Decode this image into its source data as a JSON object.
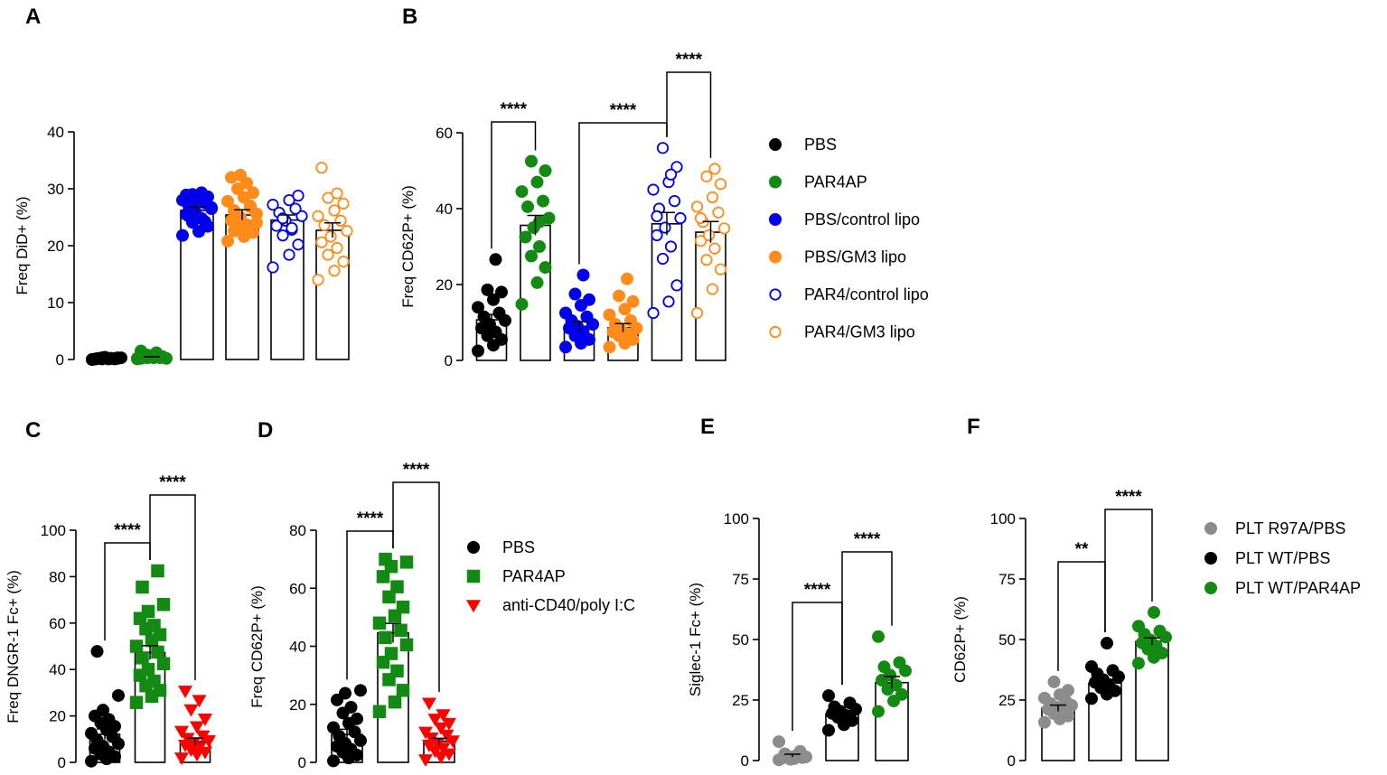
{
  "chart_data": [
    {
      "id": "A",
      "type": "bar",
      "panel_label": "A",
      "ylabel": "Freq DiD+ (%)",
      "ylim": [
        0,
        40
      ],
      "yticks": [
        0,
        10,
        20,
        30,
        40
      ],
      "ytick_labels": [
        "0",
        "10",
        "20",
        "30",
        "40"
      ],
      "groups": [
        {
          "name": "PBS",
          "color": "#000000",
          "filled": true,
          "marker": "circle",
          "mean": 0.2,
          "sem": 0.1,
          "points": [
            0,
            0.1,
            0.2,
            0.3,
            0.2,
            0.1,
            0.4,
            0.3,
            0.2,
            0.1,
            0,
            0.2,
            0.3,
            0.1,
            0.2,
            0.1
          ]
        },
        {
          "name": "PAR4AP",
          "color": "#138a13",
          "filled": true,
          "marker": "circle",
          "mean": 0.4,
          "sem": 0.1,
          "points": [
            0.1,
            0.3,
            0.5,
            0.8,
            1.2,
            1.5,
            0.4,
            0.2,
            0.6,
            0.3,
            0.2,
            0.7,
            0.4,
            0.3,
            0.5,
            0.2
          ]
        },
        {
          "name": "PBS/control lipo",
          "color": "#0000ee",
          "filled": true,
          "marker": "circle",
          "mean": 26.2,
          "sem": 0.6,
          "points": [
            21.8,
            22.5,
            23.4,
            24.1,
            24.8,
            25.5,
            26,
            26.5,
            27,
            27.5,
            28,
            28.3,
            28.6,
            29,
            29.3,
            28.9,
            27.8,
            26.7,
            25.2,
            24.2
          ]
        },
        {
          "name": "PBS/GM3 lipo",
          "color": "#ff8c1a",
          "filled": true,
          "marker": "circle",
          "mean": 25.4,
          "sem": 0.9,
          "points": [
            20.8,
            21.6,
            22.3,
            23,
            23.7,
            24.4,
            25,
            25.6,
            26.2,
            27,
            27.8,
            28.5,
            29.3,
            30,
            31,
            32,
            32.4,
            24,
            22.6,
            26.8
          ]
        },
        {
          "name": "PAR4/control lipo",
          "color": "#0000ee",
          "filled": false,
          "marker": "circle",
          "mean": 24.5,
          "sem": 0.9,
          "points": [
            16.2,
            18.4,
            20.2,
            21.8,
            22.8,
            23.5,
            24.4,
            25.2,
            25.8,
            26.5,
            27.2,
            28,
            28.8,
            24.8,
            23.1
          ]
        },
        {
          "name": "PAR4/GM3 lipo",
          "color": "#ff8c1a",
          "filled": false,
          "marker": "circle",
          "mean": 22.7,
          "sem": 1.3,
          "points": [
            14,
            15.6,
            17.2,
            18.4,
            19.6,
            20.6,
            21.6,
            22.6,
            23.6,
            24.4,
            25.2,
            26.2,
            27.4,
            28.4,
            29.2,
            33.7
          ]
        }
      ],
      "brackets": []
    },
    {
      "id": "B",
      "type": "bar",
      "panel_label": "B",
      "ylabel": "Freq CD62P+ (%)",
      "ylim": [
        0,
        60
      ],
      "yticks": [
        0,
        20,
        40,
        60
      ],
      "ytick_labels": [
        "0",
        "20",
        "40",
        "60"
      ],
      "groups": [
        {
          "name": "PBS",
          "color": "#000000",
          "filled": true,
          "marker": "circle",
          "mean": 10.7,
          "sem": 1.4,
          "points": [
            2.5,
            4,
            5.5,
            6.5,
            7.5,
            8.5,
            9.5,
            10.5,
            11.5,
            12.5,
            14,
            16,
            18,
            18.6,
            26.6
          ]
        },
        {
          "name": "PAR4AP",
          "color": "#138a13",
          "filled": true,
          "marker": "circle",
          "mean": 35.6,
          "sem": 2.6,
          "points": [
            14.8,
            20.5,
            24.5,
            27.5,
            30,
            32.5,
            35,
            37.5,
            40.5,
            42,
            44.5,
            47,
            50,
            52.5,
            36.5
          ]
        },
        {
          "name": "PBS/control lipo",
          "color": "#0000ee",
          "filled": true,
          "marker": "circle",
          "mean": 9.0,
          "sem": 1.2,
          "points": [
            3.5,
            4.5,
            5.5,
            6.5,
            7.5,
            8.5,
            9,
            9.5,
            10.5,
            11.5,
            12.5,
            14.5,
            16,
            17.5,
            22.5
          ]
        },
        {
          "name": "PBS/GM3 lipo",
          "color": "#ff8c1a",
          "filled": true,
          "marker": "circle",
          "mean": 8.6,
          "sem": 1.1,
          "points": [
            3.5,
            4.5,
            5.5,
            6.5,
            7,
            7.5,
            8,
            8.5,
            9.5,
            10.5,
            12,
            13.5,
            15.5,
            17,
            21.5
          ]
        },
        {
          "name": "PAR4/control lipo",
          "color": "#0000ee",
          "filled": false,
          "marker": "circle",
          "mean": 36.0,
          "sem": 3.0,
          "points": [
            12.5,
            15.5,
            19.8,
            26.8,
            30,
            33,
            35,
            37.5,
            40,
            42,
            45,
            47,
            51,
            56,
            49,
            38
          ]
        },
        {
          "name": "PAR4/GM3 lipo",
          "color": "#ff8c1a",
          "filled": false,
          "marker": "circle",
          "mean": 33.8,
          "sem": 2.8,
          "points": [
            12.5,
            18.8,
            24,
            26.5,
            29.5,
            31.5,
            33,
            34.8,
            36.5,
            39,
            40.5,
            43,
            46.5,
            48.5,
            50.5,
            37.5
          ]
        }
      ],
      "brackets": [
        {
          "from": 0,
          "to": 1,
          "label": "****",
          "level": 1
        },
        {
          "from": 2,
          "to": 4,
          "label": "****",
          "level": 2
        },
        {
          "from": 4,
          "to": 5,
          "label": "****",
          "level": 3
        }
      ],
      "legend": [
        "PBS",
        "PAR4AP",
        "PBS/control lipo",
        "PBS/GM3 lipo",
        "PAR4/control lipo",
        "PAR4/GM3 lipo"
      ]
    },
    {
      "id": "C",
      "type": "bar",
      "panel_label": "C",
      "ylabel": "Freq DNGR-1 Fc+ (%)",
      "ylim": [
        0,
        100
      ],
      "yticks": [
        0,
        20,
        40,
        60,
        80,
        100
      ],
      "ytick_labels": [
        "0",
        "20",
        "40",
        "60",
        "80",
        "100"
      ],
      "groups": [
        {
          "name": "PBS",
          "color": "#000000",
          "filled": true,
          "marker": "circle",
          "mean": 12.1,
          "sem": 2.3,
          "points": [
            0.5,
            1.5,
            2.5,
            3.5,
            4.5,
            6,
            7,
            8,
            9.5,
            11,
            12.5,
            14,
            15.5,
            17,
            18.5,
            20,
            22.5,
            28.8,
            47.8
          ]
        },
        {
          "name": "PAR4AP",
          "color": "#138a13",
          "filled": true,
          "marker": "square",
          "mean": 47.3,
          "sem": 3.0,
          "points": [
            25.8,
            28.5,
            31,
            33,
            35,
            37.5,
            40,
            42.5,
            45,
            47.5,
            50,
            52.5,
            55,
            57.5,
            59,
            62,
            65,
            68,
            75.5,
            82.5
          ]
        },
        {
          "name": "anti-CD40/poly I:C",
          "color": "#ff0000",
          "filled": true,
          "marker": "triangle",
          "mean": 8.9,
          "sem": 1.6,
          "points": [
            2,
            3.5,
            4.5,
            5.5,
            6.5,
            7.5,
            8.5,
            9.5,
            10.5,
            11.5,
            13.5,
            15.5,
            18.8,
            22.8,
            26.8,
            30.8
          ]
        }
      ],
      "brackets": [
        {
          "from": 0,
          "to": 1,
          "label": "****",
          "level": 1
        },
        {
          "from": 1,
          "to": 2,
          "label": "****",
          "level": 2
        }
      ]
    },
    {
      "id": "D",
      "type": "bar",
      "panel_label": "D",
      "ylabel": "Freq CD62P+ (%)",
      "ylim": [
        0,
        80
      ],
      "yticks": [
        0,
        20,
        40,
        60,
        80
      ],
      "ytick_labels": [
        "0",
        "20",
        "40",
        "60",
        "80"
      ],
      "groups": [
        {
          "name": "PBS",
          "color": "#000000",
          "filled": true,
          "marker": "circle",
          "mean": 9.6,
          "sem": 1.8,
          "points": [
            0.5,
            1.5,
            2.5,
            3.5,
            4.5,
            5.5,
            6.5,
            7.5,
            9,
            10.5,
            12,
            13.5,
            15,
            17,
            19,
            21.5,
            23.8,
            24.8
          ]
        },
        {
          "name": "PAR4AP",
          "color": "#138a13",
          "filled": true,
          "marker": "square",
          "mean": 44.6,
          "sem": 3.3,
          "points": [
            17.5,
            20.8,
            24.8,
            28.5,
            31.5,
            34.5,
            37.5,
            40.5,
            43,
            45.5,
            48,
            50.5,
            53.5,
            57,
            60.5,
            64,
            67.5,
            69,
            70
          ]
        },
        {
          "name": "anti-CD40/poly I:C",
          "color": "#ff0000",
          "filled": true,
          "marker": "triangle",
          "mean": 7.2,
          "sem": 1.1,
          "points": [
            1,
            2,
            3,
            4,
            5,
            6,
            6.5,
            7.5,
            8.5,
            9.5,
            10.5,
            12,
            13.5,
            15,
            16.5,
            20.5
          ]
        }
      ],
      "brackets": [
        {
          "from": 0,
          "to": 1,
          "label": "****",
          "level": 1
        },
        {
          "from": 1,
          "to": 2,
          "label": "****",
          "level": 2
        }
      ],
      "legend": [
        "PBS",
        "PAR4AP",
        "anti-CD40/poly I:C"
      ]
    },
    {
      "id": "E",
      "type": "bar",
      "panel_label": "E",
      "ylabel": "Siglec-1 Fc+ (%)",
      "ylim": [
        0,
        100
      ],
      "yticks": [
        0,
        25,
        50,
        75,
        100
      ],
      "ytick_labels": [
        "0",
        "25",
        "50",
        "75",
        "100"
      ],
      "groups": [
        {
          "name": "PLT R97A/PBS",
          "color": "#8c8c8c",
          "filled": true,
          "marker": "circle",
          "mean": 2.0,
          "sem": 0.6,
          "points": [
            0.3,
            0.8,
            1.2,
            1.7,
            2.2,
            1,
            0.5,
            1.5,
            2.8,
            3.8,
            7.8
          ]
        },
        {
          "name": "PLT WT/PBS",
          "color": "#000000",
          "filled": true,
          "marker": "circle",
          "mean": 19.3,
          "sem": 1.2,
          "points": [
            12.5,
            14.8,
            16.5,
            17.8,
            18.6,
            19.5,
            20.4,
            21.2,
            22.2,
            23.8,
            26.8
          ]
        },
        {
          "name": "PLT WT/PAR4AP",
          "color": "#138a13",
          "filled": true,
          "marker": "circle",
          "mean": 32.2,
          "sem": 2.5,
          "points": [
            20.3,
            24.6,
            27.3,
            29.4,
            31.2,
            33.2,
            35.3,
            37.1,
            38.7,
            40.5,
            51.2
          ]
        }
      ],
      "brackets": [
        {
          "from": 0,
          "to": 1,
          "label": "****",
          "level": 1
        },
        {
          "from": 1,
          "to": 2,
          "label": "****",
          "level": 2
        }
      ]
    },
    {
      "id": "F",
      "type": "bar",
      "panel_label": "F",
      "ylabel": "CD62P+ (%)",
      "ylim": [
        0,
        100
      ],
      "yticks": [
        0,
        25,
        50,
        75,
        100
      ],
      "ytick_labels": [
        "0",
        "25",
        "50",
        "75",
        "100"
      ],
      "groups": [
        {
          "name": "PLT R97A/PBS",
          "color": "#8c8c8c",
          "filled": true,
          "marker": "circle",
          "mean": 21.6,
          "sem": 1.3,
          "points": [
            15.8,
            17.2,
            18.4,
            19.4,
            20.3,
            21.2,
            22,
            22.8,
            23.6,
            24.6,
            25.8,
            27.2,
            29,
            32.5
          ]
        },
        {
          "name": "PLT WT/PBS",
          "color": "#000000",
          "filled": true,
          "marker": "circle",
          "mean": 32.0,
          "sem": 1.6,
          "points": [
            25.6,
            27.4,
            28.8,
            30,
            31.2,
            32.3,
            33.4,
            34.6,
            35.8,
            37.2,
            38.8,
            48.5
          ]
        },
        {
          "name": "PLT WT/PAR4AP",
          "color": "#138a13",
          "filled": true,
          "marker": "circle",
          "mean": 49.2,
          "sem": 1.5,
          "points": [
            40.2,
            42.6,
            44.4,
            46,
            47.4,
            48.6,
            49.8,
            51,
            52.2,
            53.5,
            55.5,
            61.2
          ]
        }
      ],
      "brackets": [
        {
          "from": 0,
          "to": 1,
          "label": "**",
          "level": 1
        },
        {
          "from": 1,
          "to": 2,
          "label": "****",
          "level": 2
        }
      ],
      "legend": [
        "PLT R97A/PBS",
        "PLT WT/PBS",
        "PLT WT/PAR4AP"
      ]
    }
  ]
}
